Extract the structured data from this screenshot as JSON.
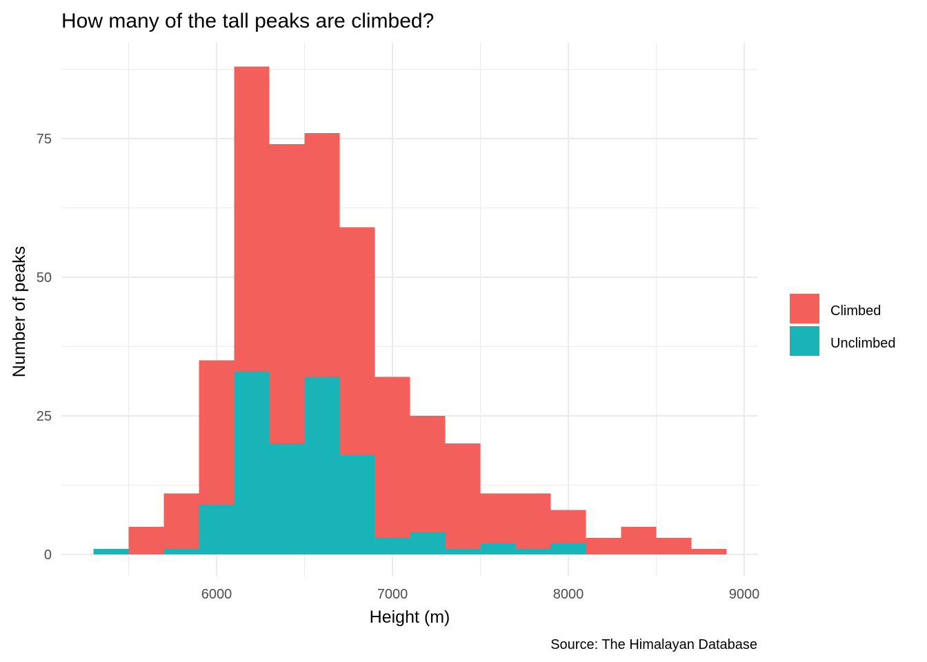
{
  "chart_data": {
    "type": "bar",
    "subtype": "stacked-histogram",
    "title": "How many of the tall peaks are climbed?",
    "xlabel": "Height (m)",
    "ylabel": "Number of peaks",
    "caption": "Source: The Himalayan Database",
    "xlim": [
      5300,
      8900
    ],
    "ylim": [
      0,
      88
    ],
    "x_ticks": [
      6000,
      7000,
      8000,
      9000
    ],
    "y_ticks": [
      0,
      25,
      50,
      75
    ],
    "bin_width": 200,
    "bin_centers": [
      5400,
      5600,
      5800,
      6000,
      6200,
      6400,
      6600,
      6800,
      7000,
      7200,
      7400,
      7600,
      7800,
      8000,
      8200,
      8400,
      8600,
      8800
    ],
    "series": [
      {
        "name": "Unclimbed",
        "color": "#19b4b8",
        "values": [
          1,
          0,
          1,
          9,
          33,
          20,
          32,
          18,
          3,
          4,
          1,
          2,
          1,
          2,
          0,
          0,
          0,
          0
        ]
      },
      {
        "name": "Climbed",
        "color": "#f3605c",
        "values": [
          0,
          5,
          10,
          26,
          55,
          54,
          44,
          41,
          29,
          21,
          19,
          9,
          10,
          6,
          3,
          5,
          3,
          1
        ]
      }
    ],
    "stacked": true,
    "legend_position": "right",
    "legend": [
      {
        "label": "Climbed",
        "color": "#f3605c"
      },
      {
        "label": "Unclimbed",
        "color": "#19b4b8"
      }
    ],
    "grid": true
  }
}
